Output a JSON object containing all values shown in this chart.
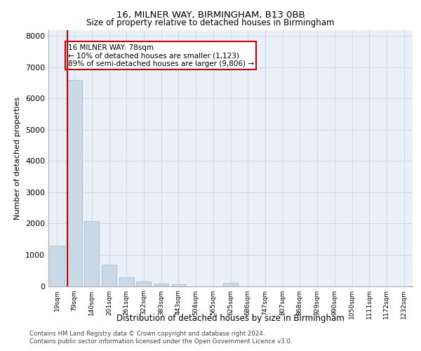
{
  "title1": "16, MILNER WAY, BIRMINGHAM, B13 0BB",
  "title2": "Size of property relative to detached houses in Birmingham",
  "xlabel": "Distribution of detached houses by size in Birmingham",
  "ylabel": "Number of detached properties",
  "categories": [
    "19sqm",
    "79sqm",
    "140sqm",
    "201sqm",
    "261sqm",
    "322sqm",
    "383sqm",
    "443sqm",
    "504sqm",
    "565sqm",
    "625sqm",
    "686sqm",
    "747sqm",
    "807sqm",
    "868sqm",
    "929sqm",
    "990sqm",
    "1050sqm",
    "1111sqm",
    "1172sqm",
    "1232sqm"
  ],
  "values": [
    1300,
    6600,
    2080,
    680,
    290,
    140,
    80,
    60,
    0,
    0,
    100,
    0,
    0,
    0,
    0,
    0,
    0,
    0,
    0,
    0,
    0
  ],
  "bar_color": "#c9d9e8",
  "bar_edge_color": "#a0b8cc",
  "ylim": [
    0,
    8200
  ],
  "yticks": [
    0,
    1000,
    2000,
    3000,
    4000,
    5000,
    6000,
    7000,
    8000
  ],
  "annotation_line1": "16 MILNER WAY: 78sqm",
  "annotation_line2": "← 10% of detached houses are smaller (1,123)",
  "annotation_line3": "89% of semi-detached houses are larger (9,806) →",
  "annotation_box_color": "#ffffff",
  "annotation_box_edge": "#cc0000",
  "marker_line_color": "#cc0000",
  "grid_color": "#d0d8e8",
  "bg_color": "#eaf0f8",
  "footer1": "Contains HM Land Registry data © Crown copyright and database right 2024.",
  "footer2": "Contains public sector information licensed under the Open Government Licence v3.0."
}
